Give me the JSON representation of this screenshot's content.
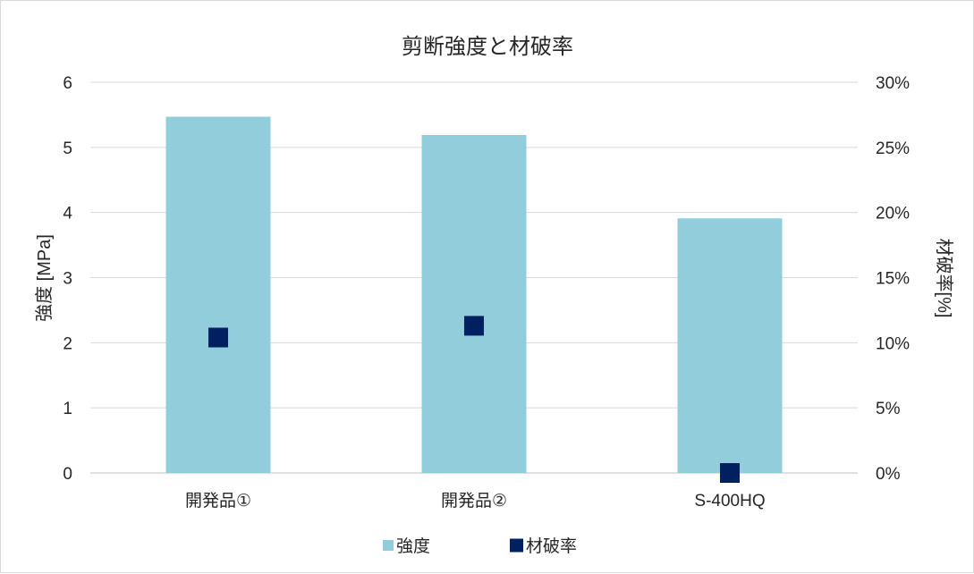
{
  "chart_data": {
    "type": "bar",
    "title": "剪断強度と材破率",
    "categories": [
      "開発品①",
      "開発品②",
      "S-400HQ"
    ],
    "series": [
      {
        "name": "強度",
        "kind": "bar",
        "axis": "left",
        "color": "#92CDDC",
        "values": [
          5.47,
          5.19,
          3.91
        ]
      },
      {
        "name": "材破率",
        "kind": "marker",
        "axis": "right",
        "color": "#002060",
        "values": [
          10.4,
          11.3,
          0
        ]
      }
    ],
    "left_axis": {
      "label": "強度 [MPa]",
      "min": 0,
      "max": 6,
      "ticks": [
        "0",
        "1",
        "2",
        "3",
        "4",
        "5",
        "6"
      ]
    },
    "right_axis": {
      "label": "材破率[%]",
      "min": 0,
      "max": 30,
      "ticks": [
        "0%",
        "5%",
        "10%",
        "15%",
        "20%",
        "25%",
        "30%"
      ]
    },
    "grid": true,
    "legend": "bottom"
  }
}
